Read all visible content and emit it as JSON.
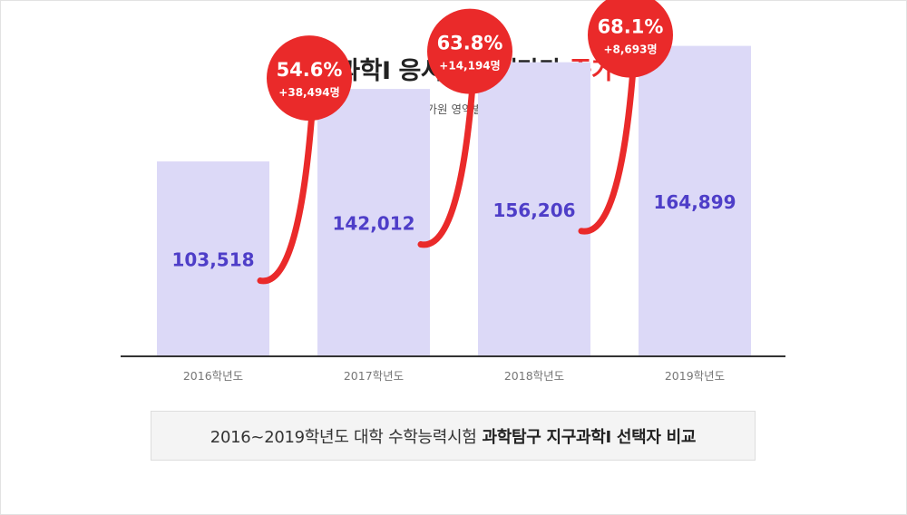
{
  "header": {
    "title_main": "지구과학Ⅰ 응시인원 해마다",
    "title_accent": "증가",
    "note": "※ 한국교육과정평가원 영역별 응시자 현황 기준"
  },
  "footer": {
    "caption_normal": "2016~2019학년도 대학 수학능력시험",
    "caption_bold": "과학탐구 지구과학Ⅰ 선택자 비교"
  },
  "colors": {
    "bar": "#dcd9f7",
    "bar_label": "#4e3ec8",
    "accent": "#ea2a2a",
    "axis": "#333333",
    "tick": "#777777"
  },
  "chart_data": {
    "type": "bar",
    "categories": [
      "2016학년도",
      "2017학년도",
      "2018학년도",
      "2019학년도"
    ],
    "values": [
      103518,
      142012,
      156206,
      164899
    ],
    "value_labels": [
      "103,518",
      "142,012",
      "156,206",
      "164,899"
    ],
    "ylim": [
      0,
      170000
    ],
    "grid": false,
    "legend": "none",
    "annotations": [
      {
        "to": "2017학년도",
        "percent": "54.6%",
        "change": "+38,494명"
      },
      {
        "to": "2018학년도",
        "percent": "63.8%",
        "change": "+14,194명"
      },
      {
        "to": "2019학년도",
        "percent": "68.1%",
        "change": "+8,693명"
      }
    ]
  }
}
